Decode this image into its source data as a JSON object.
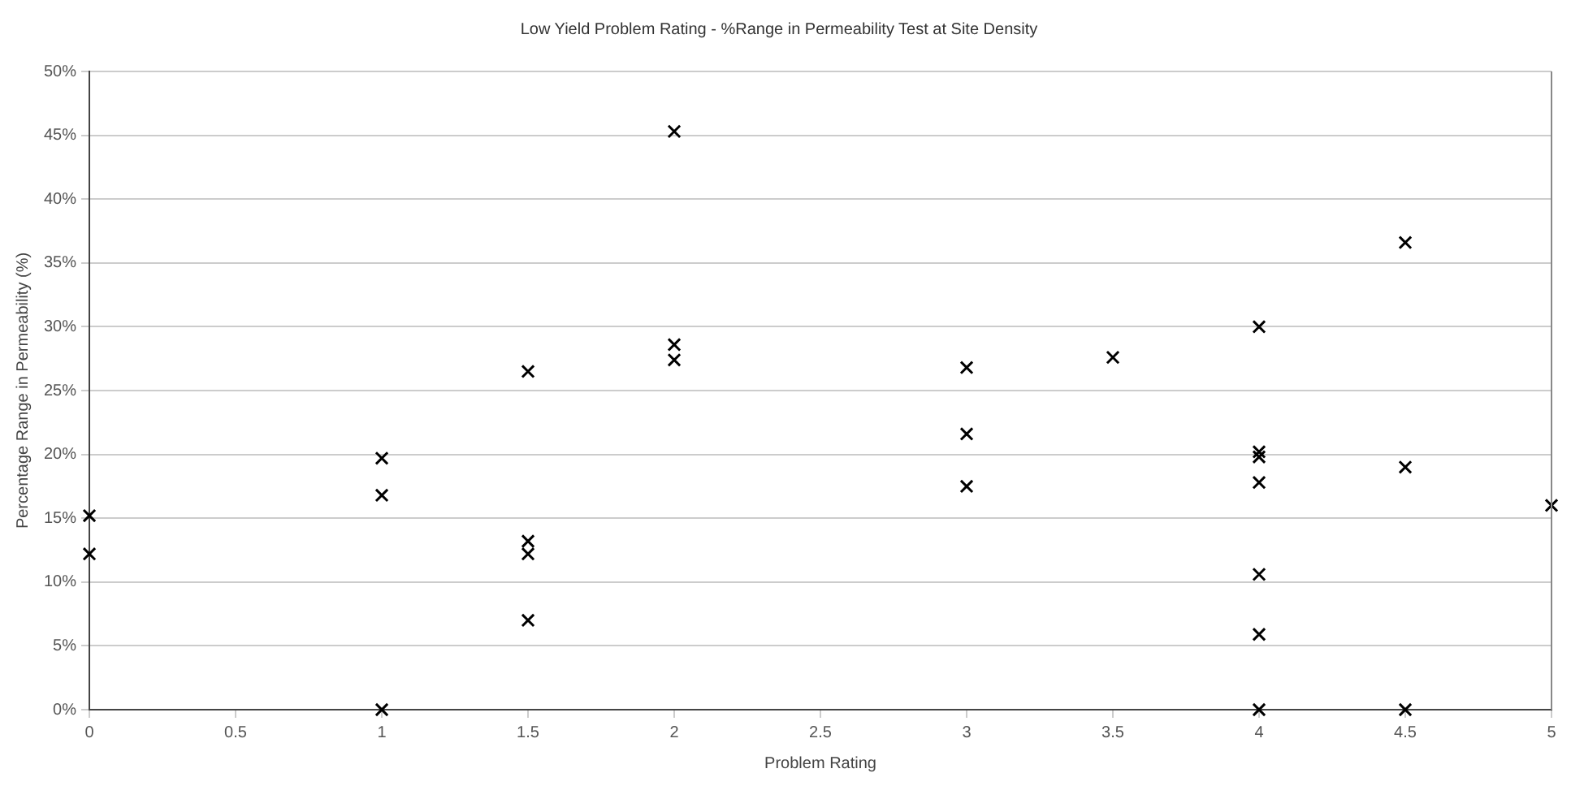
{
  "chart_data": {
    "type": "scatter",
    "title": "Low Yield Problem Rating - %Range in Permeability Test at Site Density",
    "xlabel": "Problem Rating",
    "ylabel": "Percentage Range in Permeability (%)",
    "x": [
      0,
      0,
      1,
      1,
      1,
      1.5,
      1.5,
      1.5,
      1.5,
      2,
      2,
      2,
      3,
      3,
      3,
      3.5,
      4,
      4,
      4,
      4,
      4,
      4,
      4,
      4.5,
      4.5,
      4.5,
      5
    ],
    "series": [
      {
        "color": "#000000",
        "values": [
          15.2,
          12.2,
          19.7,
          16.8,
          0,
          26.5,
          13.2,
          12.2,
          7,
          45.3,
          28.6,
          27.4,
          26.8,
          21.6,
          17.5,
          27.6,
          30,
          20.2,
          19.8,
          17.8,
          10.6,
          5.9,
          0,
          36.6,
          19,
          0,
          16
        ]
      }
    ],
    "xlim": [
      0,
      5
    ],
    "xticks": [
      0,
      {
        "value": 0.5,
        "label": "0.5"
      },
      1,
      {
        "value": 1.5,
        "label": "1.5"
      },
      2,
      {
        "value": 2.5,
        "label": "2.5"
      },
      3,
      {
        "value": 3.5,
        "label": "3.5"
      },
      4,
      {
        "value": 4.5,
        "label": "4.5"
      },
      5
    ],
    "ylim": [
      0,
      50
    ],
    "yticks": [
      {
        "value": 0,
        "label": "0%"
      },
      {
        "value": 5,
        "label": "5%"
      },
      {
        "value": 10,
        "label": "10%"
      },
      {
        "value": 15,
        "label": "15%"
      },
      {
        "value": 20,
        "label": "20%"
      },
      {
        "value": 25,
        "label": "25%"
      },
      {
        "value": 30,
        "label": "30%"
      },
      {
        "value": 35,
        "label": "35%"
      },
      {
        "value": 40,
        "label": "40%"
      },
      {
        "value": 45,
        "label": "45%"
      },
      {
        "value": 50,
        "label": "50%"
      }
    ],
    "grid": "y",
    "legend": false,
    "marker": "cross"
  }
}
